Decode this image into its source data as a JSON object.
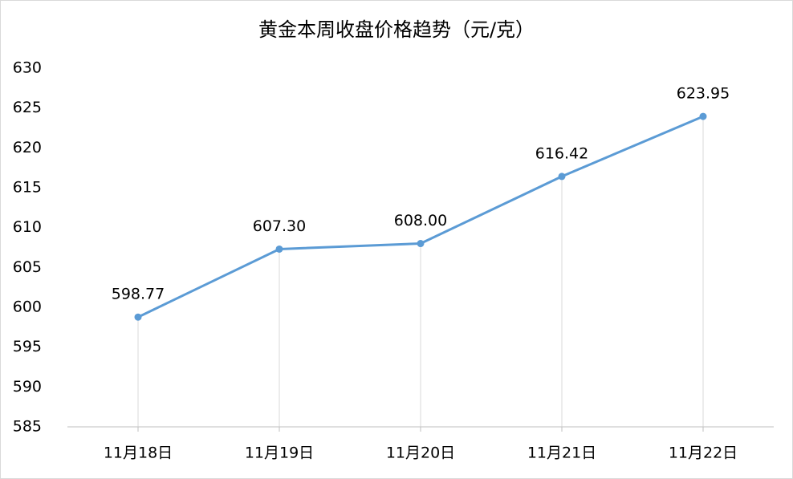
{
  "chart_data": {
    "type": "line",
    "title": "黄金本周收盘价格趋势（元/克）",
    "categories": [
      "11月18日",
      "11月19日",
      "11月20日",
      "11月21日",
      "11月22日"
    ],
    "values": [
      598.77,
      607.3,
      608,
      616.42,
      623.95
    ],
    "value_labels": [
      "598.77",
      "607.30",
      "608.00",
      "616.42",
      "623.95"
    ],
    "color": "#5b9bd5",
    "ylim": [
      585,
      630
    ],
    "yticks": [
      585,
      590,
      595,
      600,
      605,
      610,
      615,
      620,
      625,
      630
    ],
    "grid": false
  }
}
